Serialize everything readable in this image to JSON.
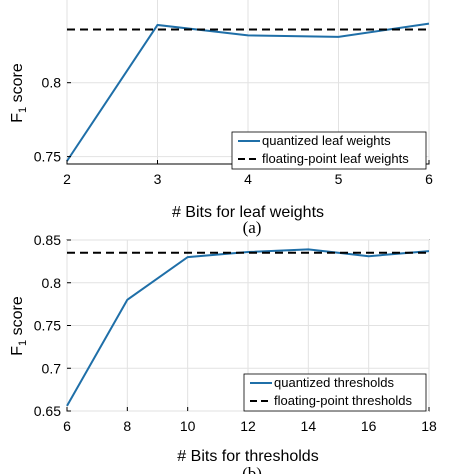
{
  "chart_data": [
    {
      "type": "line",
      "caption": "(a)",
      "xlabel": "# Bits for leaf weights",
      "ylabel_main": "F",
      "ylabel_sub": "1",
      "ylabel_rest": " score",
      "xlim": [
        2,
        6
      ],
      "ylim": [
        0.745,
        0.86
      ],
      "xticks": [
        2,
        3,
        4,
        5,
        6
      ],
      "xtick_labels": [
        "2",
        "3",
        "4",
        "5",
        "6"
      ],
      "yticks": [
        0.75,
        0.8
      ],
      "ytick_labels": [
        "0.75",
        "0.8"
      ],
      "grid": true,
      "legend_position": "bottom-right",
      "series": [
        {
          "name": "quantized leaf weights",
          "style": "solid",
          "color": "#1f6fa8",
          "x": [
            2,
            3,
            4,
            5,
            6
          ],
          "y": [
            0.747,
            0.839,
            0.832,
            0.831,
            0.84
          ]
        },
        {
          "name": "floating-point leaf weights",
          "style": "dashed",
          "color": "#000000",
          "x": [
            2,
            6
          ],
          "y": [
            0.836,
            0.836
          ]
        }
      ]
    },
    {
      "type": "line",
      "caption": "(b)",
      "xlabel": "# Bits for thresholds",
      "ylabel_main": "F",
      "ylabel_sub": "1",
      "ylabel_rest": " score",
      "xlim": [
        6,
        18
      ],
      "ylim": [
        0.65,
        0.85
      ],
      "xticks": [
        6,
        8,
        10,
        12,
        14,
        16,
        18
      ],
      "xtick_labels": [
        "6",
        "8",
        "10",
        "12",
        "14",
        "16",
        "18"
      ],
      "yticks": [
        0.65,
        0.7,
        0.75,
        0.8,
        0.85
      ],
      "ytick_labels": [
        "0.65",
        "0.7",
        "0.75",
        "0.8",
        "0.85"
      ],
      "grid": true,
      "legend_position": "bottom-right",
      "series": [
        {
          "name": "quantized thresholds",
          "style": "solid",
          "color": "#1f6fa8",
          "x": [
            6,
            8,
            10,
            12,
            14,
            16,
            18
          ],
          "y": [
            0.656,
            0.78,
            0.83,
            0.836,
            0.839,
            0.831,
            0.837
          ]
        },
        {
          "name": "floating-point thresholds",
          "style": "dashed",
          "color": "#000000",
          "x": [
            6,
            18
          ],
          "y": [
            0.835,
            0.835
          ]
        }
      ]
    }
  ]
}
